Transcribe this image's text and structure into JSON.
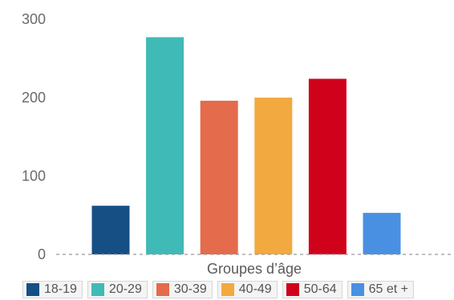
{
  "chart_data": {
    "type": "bar",
    "categories": [
      "18-19",
      "20-29",
      "30-39",
      "40-49",
      "50-64",
      "65 et +"
    ],
    "values": [
      62,
      277,
      196,
      200,
      224,
      53
    ],
    "colors": [
      "#154f84",
      "#40bab6",
      "#e46b4b",
      "#f2a93f",
      "#d0021b",
      "#4a90e2"
    ],
    "xlabel": "Groupes d’âge",
    "ylabel": "",
    "ylim": [
      0,
      300
    ],
    "yticks": [
      0,
      100,
      200,
      300
    ],
    "grid": false,
    "baseline_style": "dashed",
    "legend_position": "bottom"
  }
}
